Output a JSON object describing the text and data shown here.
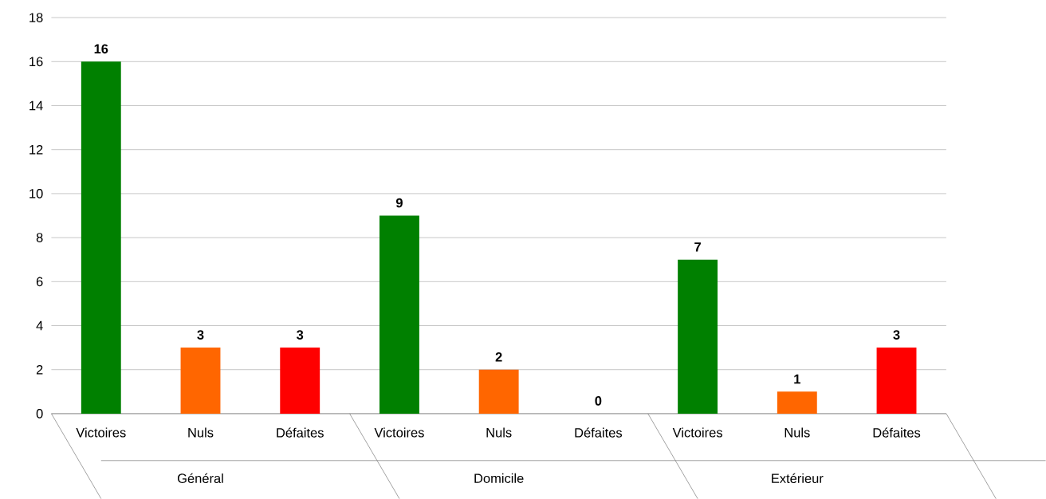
{
  "chart_data": {
    "type": "bar",
    "categories": [
      "Victoires",
      "Nuls",
      "Défaites",
      "Victoires",
      "Nuls",
      "Défaites",
      "Victoires",
      "Nuls",
      "Défaites"
    ],
    "values": [
      16,
      3,
      3,
      9,
      2,
      0,
      7,
      1,
      3
    ],
    "colors": [
      "#008000",
      "#ff6600",
      "#ff0000",
      "#008000",
      "#ff6600",
      "#ff0000",
      "#008000",
      "#ff6600",
      "#ff0000"
    ],
    "ylim": [
      0,
      18
    ],
    "yticks": [
      0,
      2,
      4,
      6,
      8,
      10,
      12,
      14,
      16,
      18
    ],
    "grid": "y",
    "data_labels": true,
    "annotations": [
      "Général",
      "Domicile",
      "Extérieur"
    ]
  }
}
